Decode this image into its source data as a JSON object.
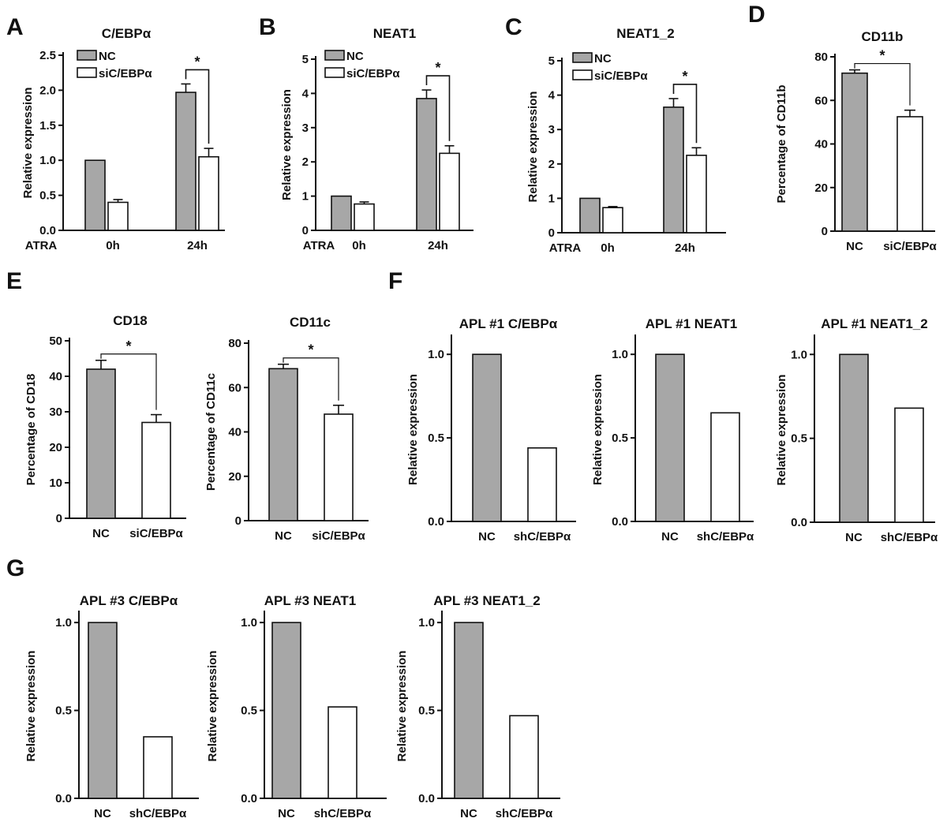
{
  "colors": {
    "nc_fill": "#a7a7a7",
    "treat_fill": "#ffffff",
    "stroke": "#111111"
  },
  "chart_data": [
    {
      "id": "A",
      "panel_label": "A",
      "type": "bar",
      "title": "C/EBPα",
      "ylabel": "Relative expression",
      "row_label": "ATRA",
      "categories": [
        "0h",
        "24h"
      ],
      "ylim": [
        0,
        2.5
      ],
      "yticks": [
        "0.0",
        "0.5",
        "1.0",
        "1.5",
        "2.0",
        "2.5"
      ],
      "legend": [
        "NC",
        "siC/EBPα"
      ],
      "series": [
        {
          "name": "NC",
          "values": [
            1.0,
            1.97
          ],
          "errors": [
            0,
            0.12
          ]
        },
        {
          "name": "siC/EBPα",
          "values": [
            0.4,
            1.05
          ],
          "errors": [
            0.04,
            0.12
          ]
        }
      ],
      "significance": "*"
    },
    {
      "id": "B",
      "panel_label": "B",
      "type": "bar",
      "title": "NEAT1",
      "ylabel": "Relative expression",
      "row_label": "ATRA",
      "categories": [
        "0h",
        "24h"
      ],
      "ylim": [
        0,
        5
      ],
      "yticks": [
        "0",
        "1",
        "2",
        "3",
        "4",
        "5"
      ],
      "legend": [
        "NC",
        "siC/EBPα"
      ],
      "series": [
        {
          "name": "NC",
          "values": [
            1.0,
            3.85
          ],
          "errors": [
            0,
            0.25
          ]
        },
        {
          "name": "siC/EBPα",
          "values": [
            0.77,
            2.25
          ],
          "errors": [
            0.06,
            0.22
          ]
        }
      ],
      "significance": "*"
    },
    {
      "id": "C",
      "panel_label": "C",
      "type": "bar",
      "title": "NEAT1_2",
      "ylabel": "Relative expression",
      "row_label": "ATRA",
      "categories": [
        "0h",
        "24h"
      ],
      "ylim": [
        0,
        5
      ],
      "yticks": [
        "0",
        "1",
        "2",
        "3",
        "4",
        "5"
      ],
      "legend": [
        "NC",
        "siC/EBPα"
      ],
      "series": [
        {
          "name": "NC",
          "values": [
            1.0,
            3.65
          ],
          "errors": [
            0,
            0.25
          ]
        },
        {
          "name": "siC/EBPα",
          "values": [
            0.73,
            2.25
          ],
          "errors": [
            0.03,
            0.22
          ]
        }
      ],
      "significance": "*"
    },
    {
      "id": "D",
      "panel_label": "D",
      "type": "bar",
      "title": "CD11b",
      "ylabel": "Percentage of CD11b",
      "categories": [
        "NC",
        "siC/EBPα"
      ],
      "ylim": [
        0,
        80
      ],
      "yticks": [
        "0",
        "20",
        "40",
        "60",
        "80"
      ],
      "values": [
        72.5,
        52.5
      ],
      "errors": [
        1.5,
        3
      ],
      "significance": "*"
    },
    {
      "id": "E1",
      "panel_label": "E",
      "type": "bar",
      "title": "CD18",
      "ylabel": "Percentage of CD18",
      "categories": [
        "NC",
        "siC/EBPα"
      ],
      "ylim": [
        0,
        50
      ],
      "yticks": [
        "0",
        "10",
        "20",
        "30",
        "40",
        "50"
      ],
      "values": [
        42,
        27
      ],
      "errors": [
        2.5,
        2.2
      ],
      "significance": "*"
    },
    {
      "id": "E2",
      "panel_label": "",
      "type": "bar",
      "title": "CD11c",
      "ylabel": "Percentage of CD11c",
      "categories": [
        "NC",
        "siC/EBPα"
      ],
      "ylim": [
        0,
        80
      ],
      "yticks": [
        "0",
        "20",
        "40",
        "60",
        "80"
      ],
      "values": [
        68.5,
        48
      ],
      "errors": [
        2,
        4
      ],
      "significance": "*"
    },
    {
      "id": "F1",
      "panel_label": "F",
      "type": "bar",
      "title": "APL #1 C/EBPα",
      "ylabel": "Relative expression",
      "categories": [
        "NC",
        "shC/EBPα"
      ],
      "ylim": [
        0,
        1.1
      ],
      "yticks": [
        "0.0",
        "0.5",
        "1.0"
      ],
      "values": [
        1.0,
        0.44
      ]
    },
    {
      "id": "F2",
      "panel_label": "",
      "type": "bar",
      "title": "APL #1  NEAT1",
      "ylabel": "Relative expression",
      "categories": [
        "NC",
        "shC/EBPα"
      ],
      "ylim": [
        0,
        1.1
      ],
      "yticks": [
        "0.0",
        "0.5",
        "1.0"
      ],
      "values": [
        1.0,
        0.65
      ]
    },
    {
      "id": "F3",
      "panel_label": "",
      "type": "bar",
      "title": "APL #1 NEAT1_2",
      "ylabel": "Relative expression",
      "categories": [
        "NC",
        "shC/EBPα"
      ],
      "ylim": [
        0,
        1.1
      ],
      "yticks": [
        "0.0",
        "0.5",
        "1.0"
      ],
      "values": [
        1.0,
        0.68
      ]
    },
    {
      "id": "G1",
      "panel_label": "G",
      "type": "bar",
      "title": "APL #3 C/EBPα",
      "ylabel": "Relative expression",
      "categories": [
        "NC",
        "shC/EBPα"
      ],
      "ylim": [
        0,
        1.05
      ],
      "yticks": [
        "0.0",
        "0.5",
        "1.0"
      ],
      "values": [
        1.0,
        0.35
      ]
    },
    {
      "id": "G2",
      "panel_label": "",
      "type": "bar",
      "title": "APL #3  NEAT1",
      "ylabel": "Relative expression",
      "categories": [
        "NC",
        "shC/EBPα"
      ],
      "ylim": [
        0,
        1.05
      ],
      "yticks": [
        "0.0",
        "0.5",
        "1.0"
      ],
      "values": [
        1.0,
        0.52
      ]
    },
    {
      "id": "G3",
      "panel_label": "",
      "type": "bar",
      "title": "APL #3 NEAT1_2",
      "ylabel": "Relative expression",
      "categories": [
        "NC",
        "shC/EBPα"
      ],
      "ylim": [
        0,
        1.05
      ],
      "yticks": [
        "0.0",
        "0.5",
        "1.0"
      ],
      "values": [
        1.0,
        0.47
      ]
    }
  ]
}
